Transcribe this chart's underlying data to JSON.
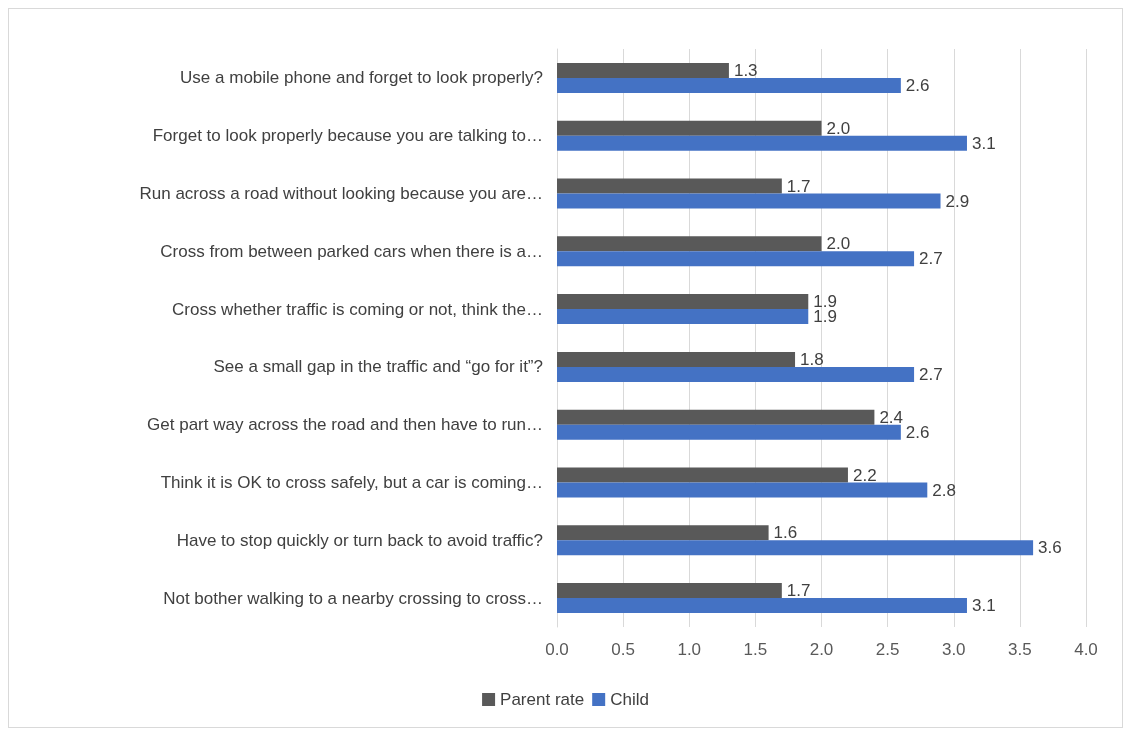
{
  "chart_data": {
    "type": "bar",
    "orientation": "horizontal",
    "categories": [
      "Use a mobile phone and forget to look properly?",
      "Forget to look properly because you are talking to…",
      "Run across a road without looking because you are…",
      "Cross from between parked cars when there is a…",
      "Cross whether traffic is coming or not, think the…",
      "See a small gap in the traffic and “go for it”?",
      "Get part way across the road and then have to run…",
      "Think it is OK to cross safely, but a car is coming…",
      "Have to stop quickly or turn back to avoid traffic?",
      "Not bother walking to a nearby crossing to cross…"
    ],
    "series": [
      {
        "name": "Parent rate",
        "color": "#595959",
        "values": [
          1.3,
          2.0,
          1.7,
          2.0,
          1.9,
          1.8,
          2.4,
          2.2,
          1.6,
          1.7
        ],
        "value_labels": [
          "1.3",
          "2.0",
          "1.7",
          "2.0",
          "1.9",
          "1.8",
          "2.4",
          "2.2",
          "1.6",
          "1.7"
        ]
      },
      {
        "name": "Child",
        "color": "#4472c4",
        "values": [
          2.6,
          3.1,
          2.9,
          2.7,
          1.9,
          2.7,
          2.6,
          2.8,
          3.6,
          3.1
        ],
        "value_labels": [
          "2.6",
          "3.1",
          "2.9",
          "2.7",
          "1.9",
          "2.7",
          "2.6",
          "2.8",
          "3.6",
          "3.1"
        ]
      }
    ],
    "xlim": [
      0,
      4
    ],
    "xticks": [
      {
        "value": 0,
        "label": "0.0"
      },
      0.5,
      {
        "value": 1,
        "label": "1.0"
      },
      1.5,
      {
        "value": 2,
        "label": "2.0"
      },
      2.5,
      {
        "value": 3,
        "label": "3.0"
      },
      3.5,
      {
        "value": 4,
        "label": "4.0"
      }
    ],
    "grid": "x",
    "legend": "bottom"
  }
}
